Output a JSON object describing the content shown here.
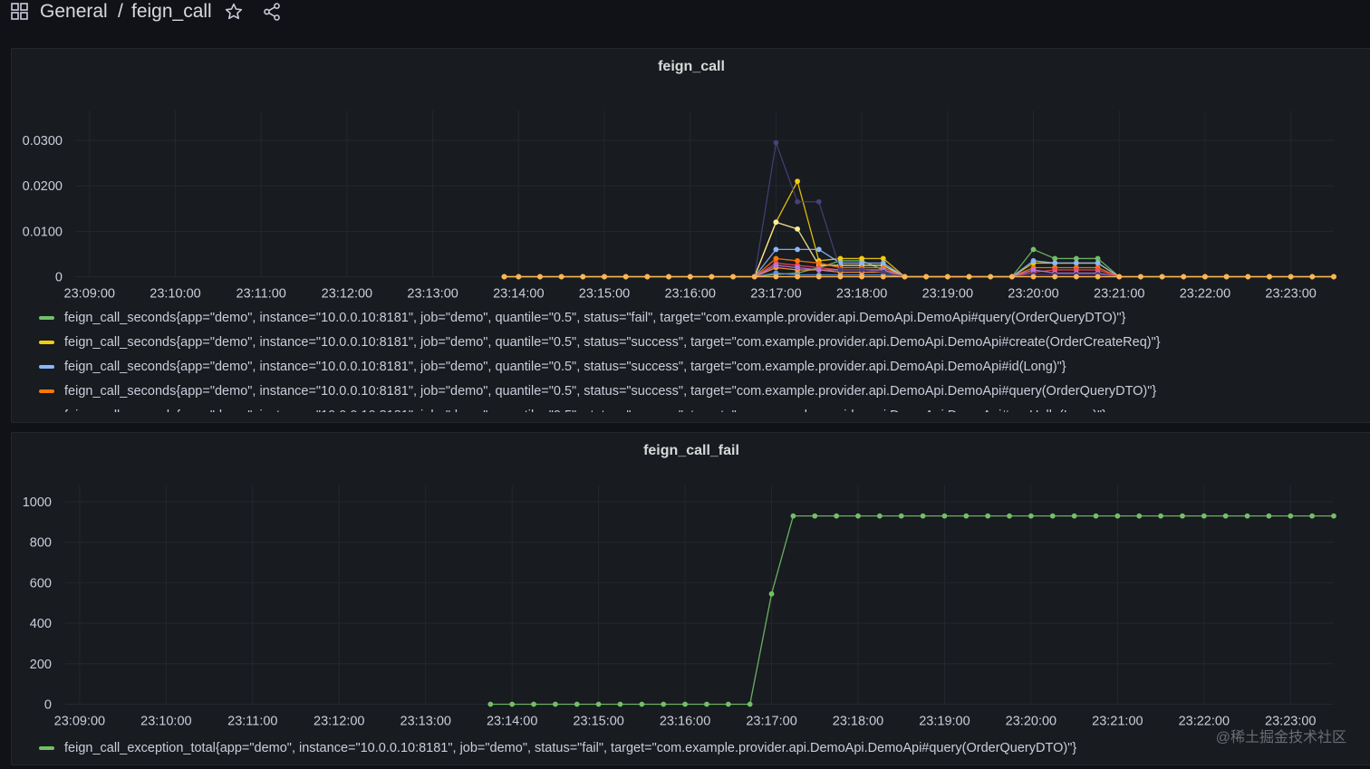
{
  "header": {
    "breadcrumb_parent": "General",
    "breadcrumb_sep": "/",
    "dashboard_title": "feign_call",
    "icons": [
      "apps-grid-icon",
      "star-icon",
      "share-icon"
    ]
  },
  "colors": {
    "background": "#111217",
    "panel": "#181b1f",
    "grid": "#2a2d33",
    "text": "#ccccdc"
  },
  "panels": [
    {
      "title": "feign_call",
      "legend": [
        {
          "color": "#73bf69",
          "label": "feign_call_seconds{app=\"demo\", instance=\"10.0.0.10:8181\", job=\"demo\", quantile=\"0.5\", status=\"fail\", target=\"com.example.provider.api.DemoApi.DemoApi#query(OrderQueryDTO)\"}"
        },
        {
          "color": "#f2cc0c",
          "label": "feign_call_seconds{app=\"demo\", instance=\"10.0.0.10:8181\", job=\"demo\", quantile=\"0.5\", status=\"success\", target=\"com.example.provider.api.DemoApi.DemoApi#create(OrderCreateReq)\"}"
        },
        {
          "color": "#8ab8ff",
          "label": "feign_call_seconds{app=\"demo\", instance=\"10.0.0.10:8181\", job=\"demo\", quantile=\"0.5\", status=\"success\", target=\"com.example.provider.api.DemoApi.DemoApi#id(Long)\"}"
        },
        {
          "color": "#ff780a",
          "label": "feign_call_seconds{app=\"demo\", instance=\"10.0.0.10:8181\", job=\"demo\", quantile=\"0.5\", status=\"success\", target=\"com.example.provider.api.DemoApi.DemoApi#query(OrderQueryDTO)\"}"
        },
        {
          "color": "#f2495c",
          "label": "feign_call_seconds{app=\"demo\", instance=\"10.0.0.10:8181\", job=\"demo\", quantile=\"0.5\", status=\"success\", target=\"com.example.provider.api.DemoApi.DemoApi#sayHello(Long)\"}"
        }
      ]
    },
    {
      "title": "feign_call_fail",
      "legend": [
        {
          "color": "#73bf69",
          "label": "feign_call_exception_total{app=\"demo\", instance=\"10.0.0.10:8181\", job=\"demo\", status=\"fail\", target=\"com.example.provider.api.DemoApi.DemoApi#query(OrderQueryDTO)\"}"
        }
      ]
    }
  ],
  "chart_data": [
    {
      "type": "line",
      "title": "feign_call",
      "x_tick_labels": [
        "23:09:00",
        "23:10:00",
        "23:11:00",
        "23:12:00",
        "23:13:00",
        "23:14:00",
        "23:15:00",
        "23:16:00",
        "23:17:00",
        "23:18:00",
        "23:19:00",
        "23:20:00",
        "23:21:00",
        "23:22:00",
        "23:23:00"
      ],
      "y_tick_labels": [
        "0",
        "0.0100",
        "0.0200",
        "0.0300"
      ],
      "ylim": [
        0,
        0.033
      ],
      "x_range": [
        "23:08:50",
        "23:23:30"
      ],
      "grid": true,
      "legend_position": "bottom",
      "series": [
        {
          "color": "#73bf69",
          "x": [
            "23:13:50",
            "23:14:00",
            "23:14:15",
            "23:14:30",
            "23:14:45",
            "23:15:00",
            "23:15:15",
            "23:15:30",
            "23:15:45",
            "23:16:00",
            "23:16:15",
            "23:16:30",
            "23:16:45",
            "23:17:00",
            "23:17:15",
            "23:17:30",
            "23:17:45",
            "23:18:00",
            "23:18:15",
            "23:18:30",
            "23:18:45",
            "23:19:00",
            "23:19:15",
            "23:19:30",
            "23:19:45",
            "23:20:00",
            "23:20:15",
            "23:20:30",
            "23:20:45",
            "23:21:00",
            "23:21:15",
            "23:21:30",
            "23:21:45",
            "23:22:00",
            "23:22:15",
            "23:22:30",
            "23:22:45",
            "23:23:00",
            "23:23:15",
            "23:23:30"
          ],
          "values": [
            0,
            0,
            0,
            0,
            0,
            0,
            0,
            0,
            0,
            0,
            0,
            0,
            0,
            0.0005,
            0.0008,
            0.002,
            0.0035,
            0.0035,
            0.0015,
            0,
            0,
            0,
            0,
            0,
            0,
            0.006,
            0.004,
            0.004,
            0.004,
            0,
            0,
            0,
            0,
            0,
            0,
            0,
            0,
            0,
            0,
            0
          ]
        },
        {
          "color": "#f2cc0c",
          "x": [
            "23:13:50",
            "23:14:00",
            "23:14:15",
            "23:14:30",
            "23:14:45",
            "23:15:00",
            "23:15:15",
            "23:15:30",
            "23:15:45",
            "23:16:00",
            "23:16:15",
            "23:16:30",
            "23:16:45",
            "23:17:00",
            "23:17:15",
            "23:17:30",
            "23:17:45",
            "23:18:00",
            "23:18:15",
            "23:18:30",
            "23:18:45",
            "23:19:00",
            "23:19:15",
            "23:19:30",
            "23:19:45",
            "23:20:00",
            "23:20:15",
            "23:20:30",
            "23:20:45",
            "23:21:00",
            "23:21:15",
            "23:21:30",
            "23:21:45",
            "23:22:00",
            "23:22:15",
            "23:22:30",
            "23:22:45",
            "23:23:00",
            "23:23:15",
            "23:23:30"
          ],
          "values": [
            0,
            0,
            0,
            0,
            0,
            0,
            0,
            0,
            0,
            0,
            0,
            0,
            0,
            0.012,
            0.021,
            0.0035,
            0.004,
            0.004,
            0.004,
            0,
            0,
            0,
            0,
            0,
            0,
            0.003,
            0.003,
            0.003,
            0.003,
            0,
            0,
            0,
            0,
            0,
            0,
            0,
            0,
            0,
            0,
            0
          ]
        },
        {
          "color": "#ffee9d",
          "x": [
            "23:16:45",
            "23:17:00",
            "23:17:15",
            "23:17:30",
            "23:17:45",
            "23:18:00",
            "23:18:15",
            "23:18:30"
          ],
          "values": [
            0,
            0.012,
            0.0105,
            0.0025,
            0.0025,
            0.0025,
            0.0025,
            0
          ]
        },
        {
          "color": "#8ab8ff",
          "x": [
            "23:16:45",
            "23:17:00",
            "23:17:15",
            "23:17:30",
            "23:17:45",
            "23:18:00",
            "23:18:15",
            "23:18:30",
            "23:19:45",
            "23:20:00",
            "23:20:15",
            "23:20:30",
            "23:20:45",
            "23:21:00"
          ],
          "values": [
            0,
            0.006,
            0.006,
            0.006,
            0.003,
            0.003,
            0.003,
            0,
            0,
            0.0035,
            0.003,
            0.003,
            0.003,
            0
          ]
        },
        {
          "color": "#5794f2",
          "x": [
            "23:16:45",
            "23:17:00",
            "23:17:15",
            "23:17:30",
            "23:17:45",
            "23:18:00",
            "23:18:15",
            "23:18:30"
          ],
          "values": [
            0,
            0.0008,
            0.0004,
            0.0004,
            0.0004,
            0.0004,
            0.0004,
            0
          ]
        },
        {
          "color": "#ff780a",
          "x": [
            "23:16:45",
            "23:17:00",
            "23:17:15",
            "23:17:30",
            "23:17:45",
            "23:18:00",
            "23:18:15",
            "23:18:30",
            "23:19:45",
            "23:20:00",
            "23:20:15",
            "23:20:30",
            "23:20:45",
            "23:21:00"
          ],
          "values": [
            0,
            0.004,
            0.0035,
            0.003,
            0.002,
            0.002,
            0.002,
            0,
            0,
            0.002,
            0.002,
            0.002,
            0.002,
            0
          ]
        },
        {
          "color": "#f2495c",
          "x": [
            "23:16:45",
            "23:17:00",
            "23:17:15",
            "23:17:30",
            "23:17:45",
            "23:18:00",
            "23:18:15",
            "23:18:30",
            "23:19:45",
            "23:20:00",
            "23:20:15",
            "23:20:30",
            "23:20:45",
            "23:21:00"
          ],
          "values": [
            0,
            0.003,
            0.0025,
            0.002,
            0.0015,
            0.0015,
            0.0015,
            0,
            0,
            0.001,
            0.0015,
            0.0015,
            0.0015,
            0
          ]
        },
        {
          "color": "#ff9830",
          "x": [
            "23:16:45",
            "23:17:00",
            "23:17:15",
            "23:17:30",
            "23:17:45",
            "23:18:00",
            "23:18:15",
            "23:18:30"
          ],
          "values": [
            0,
            0.002,
            0.0015,
            0.0015,
            0.001,
            0.001,
            0.001,
            0
          ]
        },
        {
          "color": "#b877d9",
          "x": [
            "23:16:45",
            "23:17:00",
            "23:17:15",
            "23:17:30",
            "23:17:45",
            "23:18:00",
            "23:18:15",
            "23:18:30",
            "23:19:45",
            "23:20:00",
            "23:20:15",
            "23:20:30",
            "23:20:45",
            "23:21:00"
          ],
          "values": [
            0,
            0.0025,
            0.002,
            0.0015,
            0.0015,
            0.0015,
            0.0015,
            0,
            0,
            0.0015,
            0.0008,
            0.0008,
            0.0008,
            0
          ]
        },
        {
          "color": "#4a3f7a",
          "x": [
            "23:16:45",
            "23:17:00",
            "23:17:15",
            "23:17:30",
            "23:17:45",
            "23:18:00",
            "23:18:15",
            "23:18:30",
            "23:19:45",
            "23:20:00",
            "23:20:15",
            "23:20:30",
            "23:20:45",
            "23:21:00"
          ],
          "values": [
            0,
            0.0295,
            0.0165,
            0.0165,
            0.0015,
            0.0015,
            0.001,
            0,
            0,
            0.0005,
            0.0005,
            0.0005,
            0.0005,
            0
          ]
        },
        {
          "color": "#fade2a",
          "x": [
            "23:13:50",
            "23:14:00",
            "23:14:15",
            "23:14:30",
            "23:14:45",
            "23:15:00",
            "23:15:15",
            "23:15:30",
            "23:15:45",
            "23:16:00",
            "23:16:15",
            "23:16:30",
            "23:16:45",
            "23:17:00",
            "23:17:15",
            "23:17:30",
            "23:17:45",
            "23:18:00",
            "23:18:15",
            "23:18:30",
            "23:18:45",
            "23:19:00",
            "23:19:15",
            "23:19:30",
            "23:19:45",
            "23:20:00",
            "23:20:15",
            "23:20:30",
            "23:20:45",
            "23:21:00",
            "23:21:15",
            "23:21:30",
            "23:21:45",
            "23:22:00",
            "23:22:15",
            "23:22:30",
            "23:22:45",
            "23:23:00",
            "23:23:15",
            "23:23:30"
          ],
          "values": [
            0,
            0,
            0,
            0,
            0,
            0,
            0,
            0,
            0,
            0,
            0,
            0,
            0,
            0,
            0,
            0,
            0,
            0,
            0,
            0,
            0,
            0,
            0,
            0,
            0,
            0,
            0,
            0,
            0,
            0,
            0,
            0,
            0,
            0,
            0,
            0,
            0,
            0,
            0,
            0
          ]
        },
        {
          "color": "#ffb357",
          "x": [
            "23:13:50",
            "23:14:00",
            "23:14:15",
            "23:14:30",
            "23:14:45",
            "23:15:00",
            "23:15:15",
            "23:15:30",
            "23:15:45",
            "23:16:00",
            "23:16:15",
            "23:16:30",
            "23:16:45",
            "23:17:00",
            "23:17:15",
            "23:17:30",
            "23:17:45",
            "23:18:00",
            "23:18:15",
            "23:18:30",
            "23:18:45",
            "23:19:00",
            "23:19:15",
            "23:19:30",
            "23:19:45",
            "23:20:00",
            "23:20:15",
            "23:20:30",
            "23:20:45",
            "23:21:00",
            "23:21:15",
            "23:21:30",
            "23:21:45",
            "23:22:00",
            "23:22:15",
            "23:22:30",
            "23:22:45",
            "23:23:00",
            "23:23:15",
            "23:23:30"
          ],
          "values": [
            0,
            0,
            0,
            0,
            0,
            0,
            0,
            0,
            0,
            0,
            0,
            0,
            0,
            0,
            0,
            0,
            0,
            0,
            0,
            0,
            0,
            0,
            0,
            0,
            0,
            0,
            0,
            0,
            0,
            0,
            0,
            0,
            0,
            0,
            0,
            0,
            0,
            0,
            0,
            0
          ]
        }
      ]
    },
    {
      "type": "line",
      "title": "feign_call_fail",
      "x_tick_labels": [
        "23:09:00",
        "23:10:00",
        "23:11:00",
        "23:12:00",
        "23:13:00",
        "23:14:00",
        "23:15:00",
        "23:16:00",
        "23:17:00",
        "23:18:00",
        "23:19:00",
        "23:20:00",
        "23:21:00",
        "23:22:00",
        "23:23:00"
      ],
      "y_tick_labels": [
        "0",
        "200",
        "400",
        "600",
        "800",
        "1000"
      ],
      "ylim": [
        0,
        1000
      ],
      "x_range": [
        "23:08:50",
        "23:23:30"
      ],
      "grid": true,
      "legend_position": "bottom",
      "series": [
        {
          "color": "#73bf69",
          "x": [
            "23:13:45",
            "23:14:00",
            "23:14:15",
            "23:14:30",
            "23:14:45",
            "23:15:00",
            "23:15:15",
            "23:15:30",
            "23:15:45",
            "23:16:00",
            "23:16:15",
            "23:16:30",
            "23:16:45",
            "23:17:00",
            "23:17:15",
            "23:17:30",
            "23:17:45",
            "23:18:00",
            "23:18:15",
            "23:18:30",
            "23:18:45",
            "23:19:00",
            "23:19:15",
            "23:19:30",
            "23:19:45",
            "23:20:00",
            "23:20:15",
            "23:20:30",
            "23:20:45",
            "23:21:00",
            "23:21:15",
            "23:21:30",
            "23:21:45",
            "23:22:00",
            "23:22:15",
            "23:22:30",
            "23:22:45",
            "23:23:00",
            "23:23:15",
            "23:23:30"
          ],
          "values": [
            0,
            0,
            0,
            0,
            0,
            0,
            0,
            0,
            0,
            0,
            0,
            0,
            0,
            545,
            930,
            930,
            930,
            930,
            930,
            930,
            930,
            930,
            930,
            930,
            930,
            930,
            930,
            930,
            930,
            930,
            930,
            930,
            930,
            930,
            930,
            930,
            930,
            930,
            930,
            930
          ]
        }
      ]
    }
  ],
  "watermark": "@稀土掘金技术社区"
}
